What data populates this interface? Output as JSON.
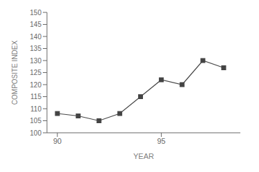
{
  "chart_data": {
    "type": "line",
    "x": [
      1990,
      1991,
      1992,
      1993,
      1994,
      1995,
      1996,
      1997,
      1998
    ],
    "values": [
      108,
      107,
      105,
      108,
      115,
      122,
      120,
      130,
      127
    ],
    "xlabel": "YEAR",
    "ylabel": "COMPOSITE INDEX",
    "xlim": [
      1989.5,
      1998.8
    ],
    "ylim": [
      100,
      150
    ],
    "xticks": [
      {
        "value": 1990,
        "label": "90"
      },
      {
        "value": 1995,
        "label": "95"
      }
    ],
    "yticks": [
      100,
      105,
      110,
      115,
      120,
      125,
      130,
      135,
      140,
      145,
      150
    ],
    "color": "#444444",
    "marker": "square",
    "grid": false
  }
}
